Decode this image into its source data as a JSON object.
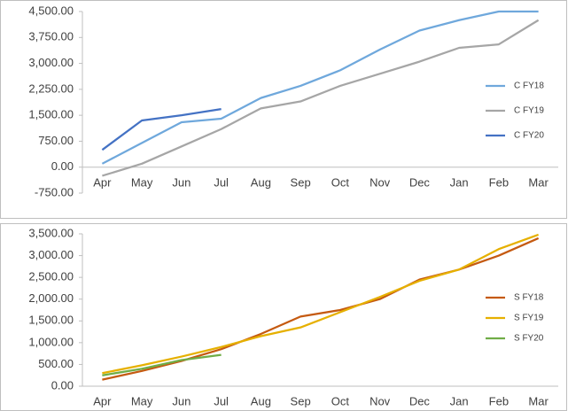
{
  "chart_data": [
    {
      "type": "line",
      "categories": [
        "Apr",
        "May",
        "Jun",
        "Jul",
        "Aug",
        "Sep",
        "Oct",
        "Nov",
        "Dec",
        "Jan",
        "Feb",
        "Mar"
      ],
      "ylim": [
        -750,
        4500
      ],
      "yticks": [
        {
          "value": -750,
          "label": "-750.00"
        },
        {
          "value": 0,
          "label": "0.00"
        },
        {
          "value": 750,
          "label": "750.00"
        },
        {
          "value": 1500,
          "label": "1,500.00"
        },
        {
          "value": 2250,
          "label": "2,250.00"
        },
        {
          "value": 3000,
          "label": "3,000.00"
        },
        {
          "value": 3750,
          "label": "3,750.00"
        },
        {
          "value": 4500,
          "label": "4,500.00"
        }
      ],
      "legend": "right",
      "series": [
        {
          "name": "C FY18",
          "color": "#6fa8dc",
          "values": [
            100,
            700,
            1300,
            1400,
            2000,
            2350,
            2800,
            3400,
            3950,
            4250,
            4500,
            4500
          ]
        },
        {
          "name": "C FY19",
          "color": "#a6a6a6",
          "values": [
            -250,
            100,
            600,
            1100,
            1700,
            1900,
            2350,
            2700,
            3050,
            3450,
            3550,
            4250
          ]
        },
        {
          "name": "C FY20",
          "color": "#4472c4",
          "values": [
            500,
            1350,
            1500,
            1680,
            null,
            null,
            null,
            null,
            null,
            null,
            null,
            null
          ]
        }
      ]
    },
    {
      "type": "line",
      "categories": [
        "Apr",
        "May",
        "Jun",
        "Jul",
        "Aug",
        "Sep",
        "Oct",
        "Nov",
        "Dec",
        "Jan",
        "Feb",
        "Mar"
      ],
      "ylim": [
        0,
        3500
      ],
      "yticks": [
        {
          "value": 0,
          "label": "0.00"
        },
        {
          "value": 500,
          "label": "500.00"
        },
        {
          "value": 1000,
          "label": "1,000.00"
        },
        {
          "value": 1500,
          "label": "1,500.00"
        },
        {
          "value": 2000,
          "label": "2,000.00"
        },
        {
          "value": 2500,
          "label": "2,500.00"
        },
        {
          "value": 3000,
          "label": "3,000.00"
        },
        {
          "value": 3500,
          "label": "3,500.00"
        }
      ],
      "legend": "right",
      "series": [
        {
          "name": "S FY18",
          "color": "#c55a11",
          "values": [
            150,
            350,
            580,
            850,
            1200,
            1600,
            1750,
            2000,
            2450,
            2680,
            3000,
            3400
          ]
        },
        {
          "name": "S FY19",
          "color": "#e6b000",
          "values": [
            300,
            480,
            680,
            900,
            1150,
            1350,
            1700,
            2050,
            2420,
            2680,
            3150,
            3480
          ]
        },
        {
          "name": "S FY20",
          "color": "#70ad47",
          "values": [
            250,
            400,
            600,
            720,
            null,
            null,
            null,
            null,
            null,
            null,
            null,
            null
          ]
        }
      ]
    }
  ]
}
